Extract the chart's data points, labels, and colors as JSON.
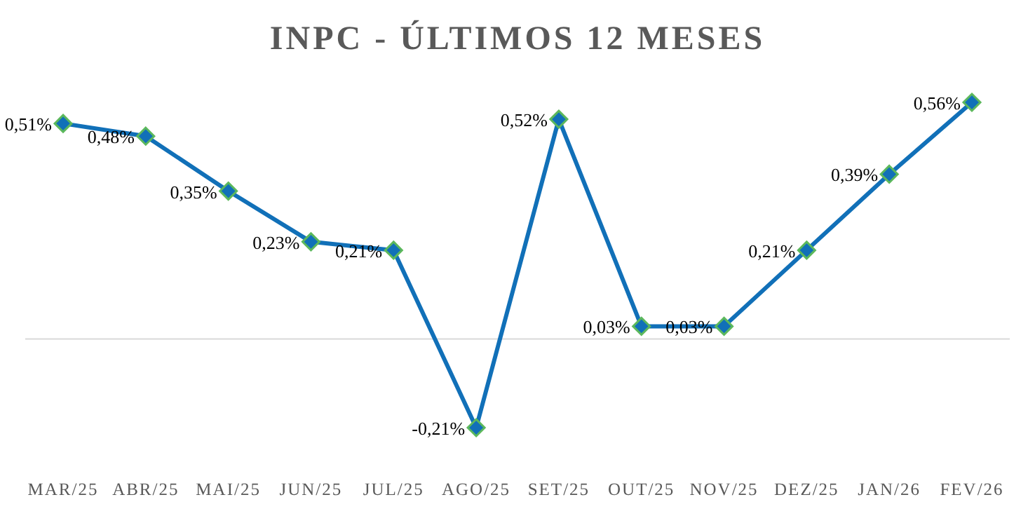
{
  "chart_data": {
    "type": "line",
    "title": "INPC - ÚLTIMOS 12 MESES",
    "categories": [
      "MAR/25",
      "ABR/25",
      "MAI/25",
      "JUN/25",
      "JUL/25",
      "AGO/25",
      "SET/25",
      "OUT/25",
      "NOV/25",
      "DEZ/25",
      "JAN/26",
      "FEV/26"
    ],
    "series": [
      {
        "color": "#1170b8",
        "values": [
          0.51,
          0.48,
          0.35,
          0.23,
          0.21,
          -0.21,
          0.52,
          0.03,
          0.03,
          0.21,
          0.39,
          0.56
        ],
        "value_labels": [
          "0,51%",
          "0,48%",
          "0,35%",
          "0,23%",
          "0,21%",
          "-0,21%",
          "0,52%",
          "0,03%",
          "0,03%",
          "0,21%",
          "0,39%",
          "0,56%"
        ]
      }
    ],
    "marker": "diamond",
    "line_style": "solid"
  }
}
